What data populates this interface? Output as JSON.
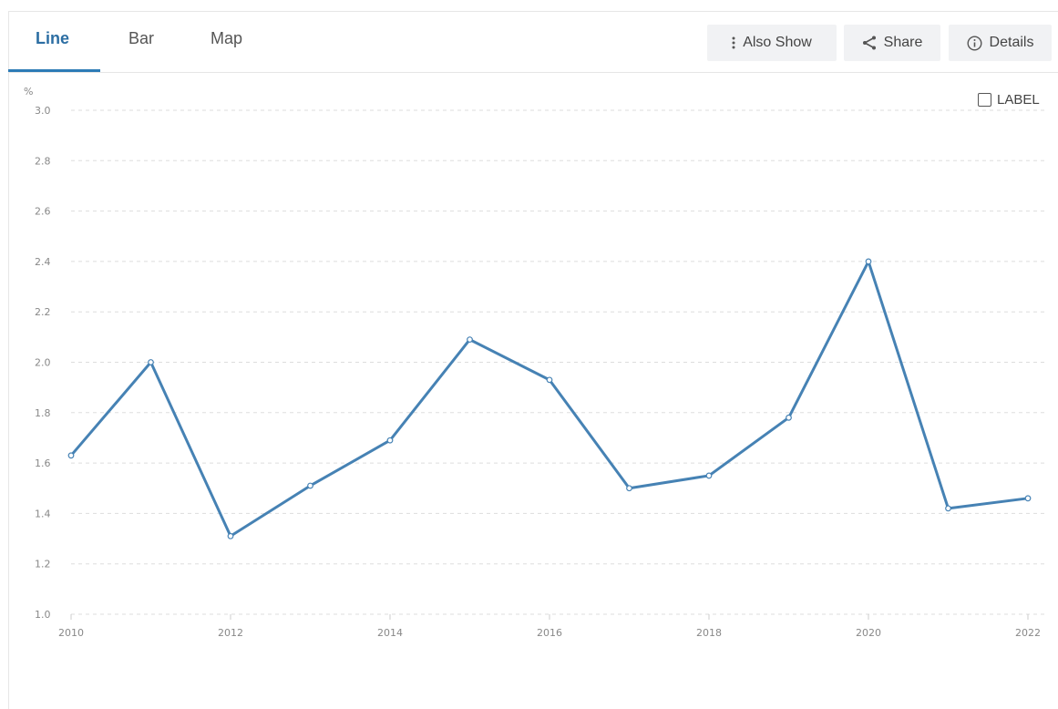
{
  "tabs": [
    {
      "label": "Line",
      "active": true
    },
    {
      "label": "Bar",
      "active": false
    },
    {
      "label": "Map",
      "active": false
    }
  ],
  "toolbar": {
    "also_show_label": "Also Show",
    "share_label": "Share",
    "details_label": "Details"
  },
  "label_toggle": {
    "label": "LABEL",
    "checked": false
  },
  "colors": {
    "accent": "#2c6ea3",
    "series": "#4682b4",
    "grid": "#dddddd"
  },
  "chart_data": {
    "type": "line",
    "ylabel": "%",
    "ylim": [
      1.0,
      3.0
    ],
    "y_ticks": [
      "1.0",
      "1.2",
      "1.4",
      "1.6",
      "1.8",
      "2.0",
      "2.2",
      "2.4",
      "2.6",
      "2.8",
      "3.0"
    ],
    "xlim": [
      2010,
      2022
    ],
    "x_ticks": [
      "2010",
      "2012",
      "2014",
      "2016",
      "2018",
      "2020",
      "2022"
    ],
    "grid": true,
    "series": [
      {
        "x": [
          2010,
          2011,
          2012,
          2013,
          2014,
          2015,
          2016,
          2017,
          2018,
          2019,
          2020,
          2021,
          2022
        ],
        "values": [
          1.63,
          2.0,
          1.31,
          1.51,
          1.69,
          2.09,
          1.93,
          1.5,
          1.55,
          1.78,
          2.4,
          1.42,
          1.46
        ]
      }
    ]
  }
}
